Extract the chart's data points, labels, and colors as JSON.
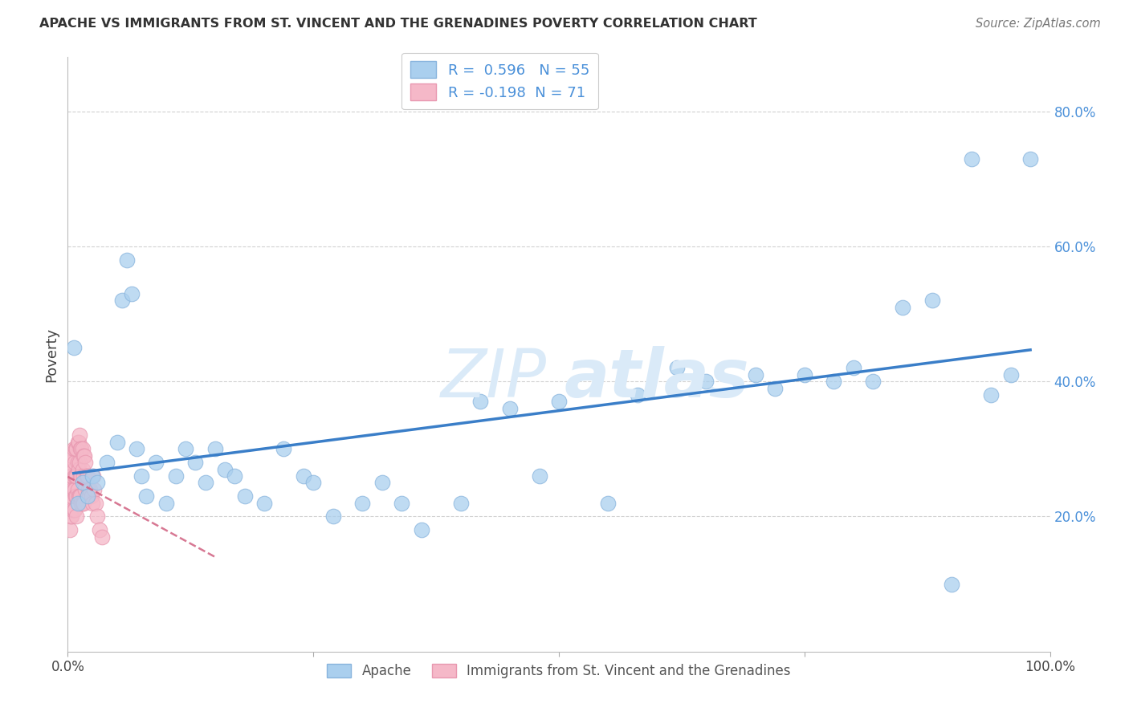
{
  "title": "APACHE VS IMMIGRANTS FROM ST. VINCENT AND THE GRENADINES POVERTY CORRELATION CHART",
  "source": "Source: ZipAtlas.com",
  "ylabel": "Poverty",
  "xlim": [
    0,
    1.0
  ],
  "ylim": [
    0.0,
    0.88
  ],
  "y_ticks": [
    0.2,
    0.4,
    0.6,
    0.8
  ],
  "y_tick_labels": [
    "20.0%",
    "40.0%",
    "60.0%",
    "80.0%"
  ],
  "x_ticks": [
    0.0,
    0.25,
    0.5,
    0.75,
    1.0
  ],
  "x_tick_labels": [
    "0.0%",
    "",
    "",
    "",
    "100.0%"
  ],
  "legend_r_apache": " 0.596",
  "legend_n_apache": "55",
  "legend_r_svg": "-0.198",
  "legend_n_svg": "71",
  "apache_color": "#aacfee",
  "apache_edge_color": "#88b4dd",
  "svgimmigrant_color": "#f5b8c8",
  "svgimmigrant_edge_color": "#e898b0",
  "trendline_apache_color": "#3a7ec8",
  "trendline_svg_color": "#d06080",
  "watermark_color": "#daeaf8",
  "background_color": "#ffffff",
  "apache_points_x": [
    0.006,
    0.01,
    0.015,
    0.02,
    0.025,
    0.03,
    0.04,
    0.05,
    0.055,
    0.06,
    0.065,
    0.07,
    0.075,
    0.08,
    0.09,
    0.1,
    0.11,
    0.12,
    0.13,
    0.14,
    0.15,
    0.16,
    0.17,
    0.18,
    0.2,
    0.22,
    0.24,
    0.25,
    0.27,
    0.3,
    0.32,
    0.34,
    0.36,
    0.4,
    0.42,
    0.45,
    0.48,
    0.5,
    0.55,
    0.58,
    0.62,
    0.65,
    0.7,
    0.72,
    0.75,
    0.78,
    0.8,
    0.82,
    0.85,
    0.88,
    0.9,
    0.92,
    0.94,
    0.96,
    0.98
  ],
  "apache_points_y": [
    0.45,
    0.22,
    0.25,
    0.23,
    0.26,
    0.25,
    0.28,
    0.31,
    0.52,
    0.58,
    0.53,
    0.3,
    0.26,
    0.23,
    0.28,
    0.22,
    0.26,
    0.3,
    0.28,
    0.25,
    0.3,
    0.27,
    0.26,
    0.23,
    0.22,
    0.3,
    0.26,
    0.25,
    0.2,
    0.22,
    0.25,
    0.22,
    0.18,
    0.22,
    0.37,
    0.36,
    0.26,
    0.37,
    0.22,
    0.38,
    0.42,
    0.4,
    0.41,
    0.39,
    0.41,
    0.4,
    0.42,
    0.4,
    0.51,
    0.52,
    0.1,
    0.73,
    0.38,
    0.41,
    0.73
  ],
  "svgimmigrant_points_x": [
    0.001,
    0.001,
    0.001,
    0.002,
    0.002,
    0.002,
    0.002,
    0.003,
    0.003,
    0.003,
    0.003,
    0.004,
    0.004,
    0.004,
    0.005,
    0.005,
    0.005,
    0.005,
    0.006,
    0.006,
    0.006,
    0.006,
    0.007,
    0.007,
    0.007,
    0.007,
    0.008,
    0.008,
    0.008,
    0.009,
    0.009,
    0.009,
    0.009,
    0.01,
    0.01,
    0.01,
    0.011,
    0.011,
    0.011,
    0.012,
    0.012,
    0.012,
    0.013,
    0.013,
    0.013,
    0.014,
    0.014,
    0.014,
    0.015,
    0.015,
    0.015,
    0.016,
    0.016,
    0.016,
    0.017,
    0.017,
    0.018,
    0.018,
    0.019,
    0.02,
    0.021,
    0.022,
    0.023,
    0.024,
    0.025,
    0.026,
    0.027,
    0.028,
    0.03,
    0.032,
    0.035
  ],
  "svgimmigrant_points_y": [
    0.26,
    0.28,
    0.24,
    0.23,
    0.27,
    0.22,
    0.18,
    0.25,
    0.28,
    0.22,
    0.2,
    0.26,
    0.23,
    0.2,
    0.29,
    0.26,
    0.24,
    0.21,
    0.3,
    0.27,
    0.24,
    0.21,
    0.28,
    0.26,
    0.24,
    0.21,
    0.3,
    0.26,
    0.23,
    0.3,
    0.26,
    0.23,
    0.2,
    0.31,
    0.28,
    0.24,
    0.31,
    0.27,
    0.23,
    0.32,
    0.28,
    0.23,
    0.3,
    0.26,
    0.23,
    0.3,
    0.26,
    0.22,
    0.3,
    0.27,
    0.22,
    0.29,
    0.26,
    0.22,
    0.29,
    0.25,
    0.28,
    0.24,
    0.26,
    0.26,
    0.24,
    0.23,
    0.24,
    0.23,
    0.22,
    0.26,
    0.24,
    0.22,
    0.2,
    0.18,
    0.17
  ],
  "apache_trendline_x": [
    0.006,
    0.98
  ],
  "apache_trendline_y_start": 0.215,
  "apache_trendline_y_end": 0.475,
  "svg_trendline_x": [
    0.0,
    0.15
  ],
  "svg_trendline_y_start": 0.265,
  "svg_trendline_y_end": 0.17
}
